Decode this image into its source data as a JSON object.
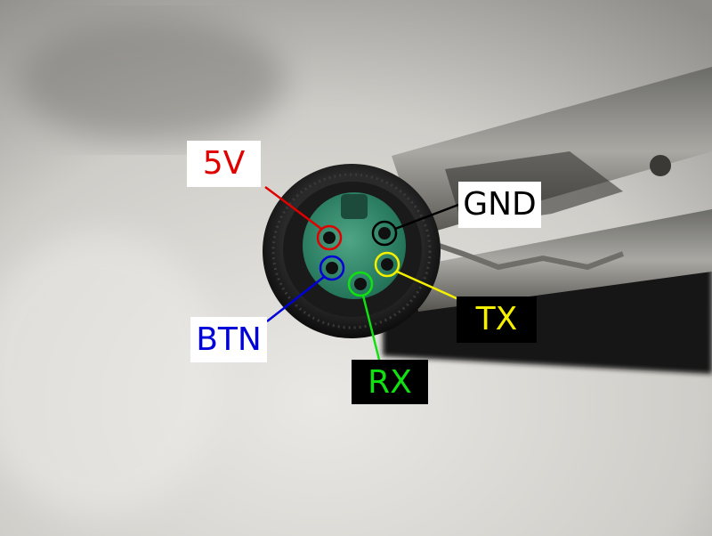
{
  "pins": [
    {
      "id": "5v",
      "label": "5V",
      "color": "#e10000",
      "label_bg": "#ffffff"
    },
    {
      "id": "gnd",
      "label": "GND",
      "color": "#000000",
      "label_bg": "#ffffff"
    },
    {
      "id": "btn",
      "label": "BTN",
      "color": "#0000d8",
      "label_bg": "#ffffff"
    },
    {
      "id": "tx",
      "label": "TX",
      "color": "#f5f000",
      "label_bg": "#000000"
    },
    {
      "id": "rx",
      "label": "RX",
      "color": "#11e011",
      "label_bg": "#000000"
    }
  ],
  "scene": {
    "subject": "connector-pin-face",
    "connector_body_color": "#1c1c1c",
    "insulator_color": "#2f8f6f",
    "clip_color": "#8a8a85"
  }
}
